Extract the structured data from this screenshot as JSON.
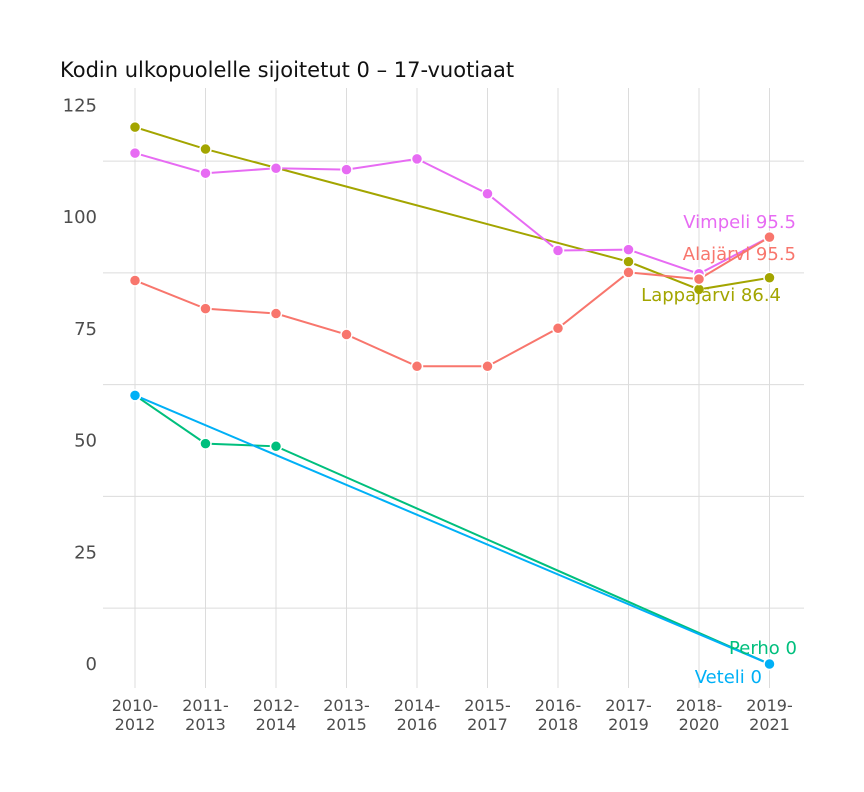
{
  "chart_data": {
    "type": "line",
    "title": "Kodin ulkopuolelle sijoitetut 0 – 17-vuotiaat",
    "xlabel": "",
    "ylabel": "",
    "ylim": [
      0,
      125
    ],
    "yticks": [
      0,
      25,
      50,
      75,
      100,
      125
    ],
    "categories": [
      [
        "2010-",
        "2012"
      ],
      [
        "2011-",
        "2013"
      ],
      [
        "2012-",
        "2014"
      ],
      [
        "2013-",
        "2015"
      ],
      [
        "2014-",
        "2016"
      ],
      [
        "2015-",
        "2017"
      ],
      [
        "2016-",
        "2018"
      ],
      [
        "2017-",
        "2019"
      ],
      [
        "2018-",
        "2020"
      ],
      [
        "2019-",
        "2021"
      ]
    ],
    "grid": true,
    "legend": "none (direct end labels)",
    "series": [
      {
        "name": "Lappajärvi",
        "color": "#a3a500",
        "end_label": "Lappajärvi 86.4",
        "points": [
          [
            0,
            120.1
          ],
          [
            1,
            115.2
          ],
          [
            7,
            90.0
          ],
          [
            8,
            83.8
          ],
          [
            9,
            86.4
          ]
        ]
      },
      {
        "name": "Vimpeli",
        "color": "#e76bf3",
        "end_label": "Vimpeli 95.5",
        "points": [
          [
            0,
            114.3
          ],
          [
            1,
            109.8
          ],
          [
            2,
            110.9
          ],
          [
            3,
            110.6
          ],
          [
            4,
            113.0
          ],
          [
            5,
            105.2
          ],
          [
            6,
            92.5
          ],
          [
            7,
            92.7
          ],
          [
            8,
            87.3
          ],
          [
            9,
            95.5
          ]
        ]
      },
      {
        "name": "Alajärvi",
        "color": "#f8766d",
        "end_label": "Alajärvi 95.5",
        "points": [
          [
            0,
            85.8
          ],
          [
            1,
            79.5
          ],
          [
            2,
            78.4
          ],
          [
            3,
            73.7
          ],
          [
            4,
            66.6
          ],
          [
            5,
            66.6
          ],
          [
            6,
            75.1
          ],
          [
            7,
            87.6
          ],
          [
            8,
            86.1
          ],
          [
            9,
            95.5
          ]
        ]
      },
      {
        "name": "Perho",
        "color": "#00bf7d",
        "end_label": "Perho 0",
        "points": [
          [
            0,
            60.1
          ],
          [
            1,
            49.3
          ],
          [
            2,
            48.7
          ],
          [
            9,
            0
          ]
        ]
      },
      {
        "name": "Veteli",
        "color": "#00b0f6",
        "end_label": "Veteli 0",
        "points": [
          [
            0,
            60.1
          ],
          [
            9,
            0
          ]
        ]
      }
    ]
  }
}
